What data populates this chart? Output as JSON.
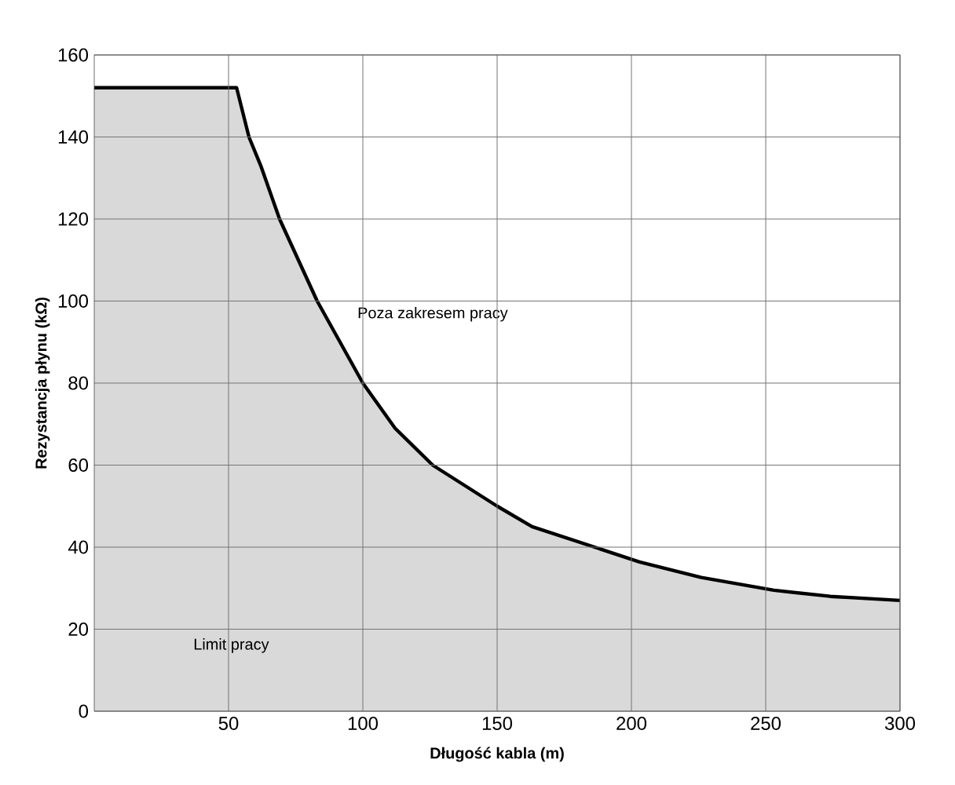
{
  "chart_data": {
    "type": "area",
    "xlabel": "Długość kabla (m)",
    "ylabel": "Rezystancja płynu (kΩ)",
    "x": [
      0,
      53,
      57.6,
      62,
      69,
      83,
      100,
      112,
      126,
      150,
      163,
      203,
      226,
      253,
      274,
      300
    ],
    "series": [
      {
        "color": "#d9d9d9",
        "values": [
          152,
          152,
          140,
          133,
          120,
          100,
          80,
          69,
          60,
          50,
          45,
          36.4,
          32.6,
          29.5,
          28,
          27
        ]
      }
    ],
    "xlim": [
      0,
      300
    ],
    "xticks": [
      50,
      100,
      150,
      200,
      250,
      300
    ],
    "ylim": [
      0,
      160
    ],
    "yticks": [
      0,
      20,
      40,
      60,
      80,
      100,
      120,
      140,
      160
    ],
    "grid": true,
    "annotations": [
      "Poza zakresem pracy",
      "Limit pracy"
    ]
  }
}
